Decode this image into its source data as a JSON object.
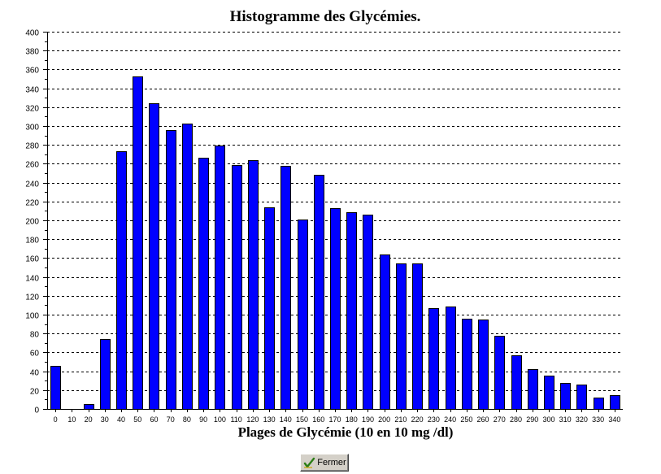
{
  "chart_data": {
    "type": "bar",
    "title": "Histogramme des Glycémies.",
    "xlabel": "Plages de Glycémie (10 en 10 mg /dl)",
    "ylabel": "",
    "ylim": [
      0,
      400
    ],
    "y_ticks": [
      0,
      20,
      40,
      60,
      80,
      100,
      120,
      140,
      160,
      180,
      200,
      220,
      240,
      260,
      280,
      300,
      320,
      340,
      360,
      380,
      400
    ],
    "grid": "horizontal-dashed",
    "bar_color": "#0000ff",
    "categories": [
      "0",
      "10",
      "20",
      "30",
      "40",
      "50",
      "60",
      "70",
      "80",
      "90",
      "100",
      "110",
      "120",
      "130",
      "140",
      "150",
      "160",
      "170",
      "180",
      "190",
      "200",
      "210",
      "220",
      "230",
      "240",
      "250",
      "260",
      "270",
      "280",
      "290",
      "300",
      "310",
      "320",
      "330",
      "340"
    ],
    "values": [
      46,
      0,
      5,
      74,
      273,
      353,
      324,
      296,
      303,
      266,
      279,
      259,
      264,
      214,
      258,
      201,
      248,
      213,
      209,
      206,
      164,
      154,
      154,
      107,
      109,
      96,
      95,
      78,
      57,
      42,
      35,
      28,
      26,
      12,
      15
    ]
  },
  "footer": {
    "close_label": "Fermer",
    "close_icon": "checkmark-icon"
  }
}
